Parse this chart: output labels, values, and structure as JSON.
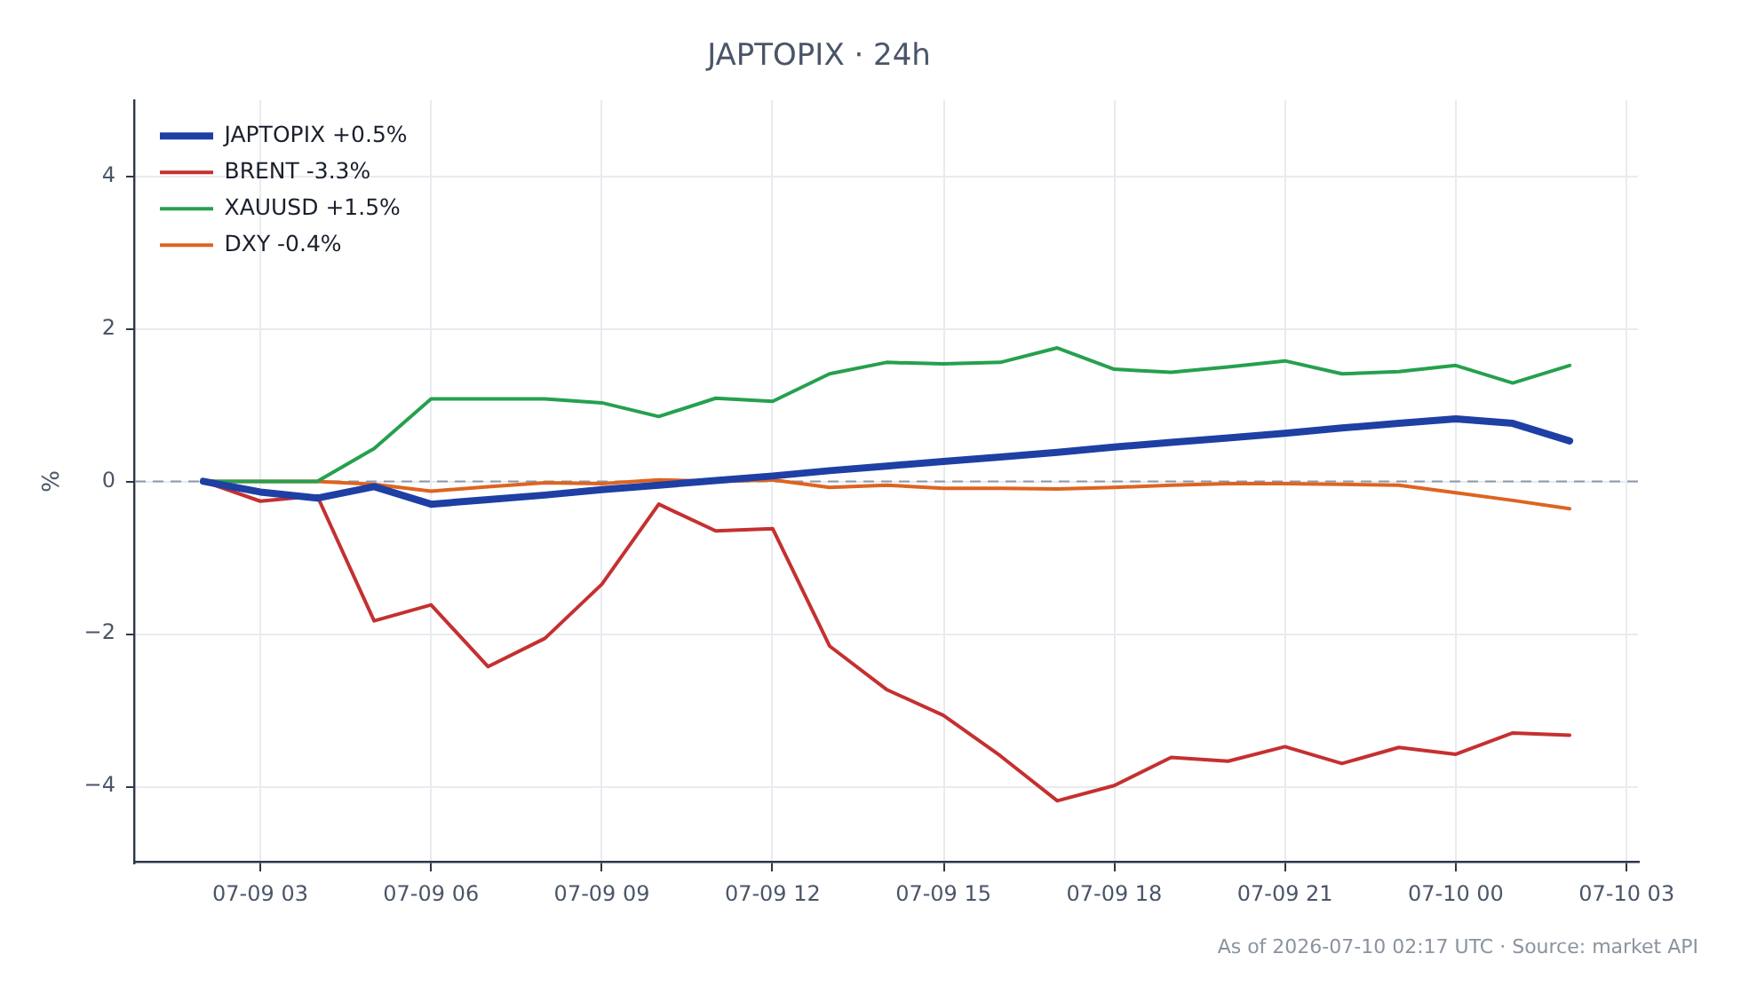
{
  "chart_data": {
    "type": "line",
    "title": "JAPTOPIX · 24h",
    "ylabel": "%",
    "annotations": [
      "As of 2026-07-10 02:17 UTC · Source: market API"
    ],
    "x": [
      "2026-07-09T02:00",
      "2026-07-09T03:00",
      "2026-07-09T04:00",
      "2026-07-09T05:00",
      "2026-07-09T06:00",
      "2026-07-09T07:00",
      "2026-07-09T08:00",
      "2026-07-09T09:00",
      "2026-07-09T10:00",
      "2026-07-09T11:00",
      "2026-07-09T12:00",
      "2026-07-09T13:00",
      "2026-07-09T14:00",
      "2026-07-09T15:00",
      "2026-07-09T16:00",
      "2026-07-09T17:00",
      "2026-07-09T18:00",
      "2026-07-09T19:00",
      "2026-07-09T20:00",
      "2026-07-09T21:00",
      "2026-07-09T22:00",
      "2026-07-09T23:00",
      "2026-07-10T00:00",
      "2026-07-10T01:00",
      "2026-07-10T02:00"
    ],
    "series": [
      {
        "name": "JAPTOPIX +0.5%",
        "color": "#1e3fa3",
        "values": [
          0,
          -0.14,
          -0.22,
          -0.07,
          -0.3,
          -0.24,
          -0.18,
          -0.11,
          -0.05,
          0.01,
          0.07,
          0.14,
          0.2,
          0.26,
          0.32,
          0.38,
          0.45,
          0.51,
          0.57,
          0.63,
          0.7,
          0.76,
          0.82,
          0.76,
          0.53
        ]
      },
      {
        "name": "BRENT -3.3%",
        "color": "#c53030",
        "values": [
          0,
          -0.26,
          -0.19,
          -1.83,
          -1.62,
          -2.43,
          -2.06,
          -1.35,
          -0.3,
          -0.65,
          -0.62,
          -2.16,
          -2.73,
          -3.07,
          -3.6,
          -4.19,
          -3.99,
          -3.62,
          -3.67,
          -3.48,
          -3.7,
          -3.49,
          -3.58,
          -3.3,
          -3.33
        ]
      },
      {
        "name": "XAUUSD +1.5%",
        "color": "#26a04e",
        "values": [
          0,
          0,
          0,
          0.43,
          1.08,
          1.08,
          1.08,
          1.03,
          0.85,
          1.09,
          1.05,
          1.41,
          1.56,
          1.54,
          1.56,
          1.75,
          1.47,
          1.43,
          1.5,
          1.58,
          1.41,
          1.44,
          1.52,
          1.29,
          1.52
        ]
      },
      {
        "name": "DXY -0.4%",
        "color": "#dd6420",
        "values": [
          0,
          0,
          0,
          -0.04,
          -0.13,
          -0.07,
          -0.02,
          -0.03,
          0.02,
          0,
          0.02,
          -0.08,
          -0.05,
          -0.09,
          -0.09,
          -0.1,
          -0.08,
          -0.05,
          -0.03,
          -0.03,
          -0.04,
          -0.05,
          -0.15,
          -0.25,
          -0.36
        ]
      }
    ],
    "xlim": [
      "2026-07-09T00:48",
      "2026-07-10T03:12"
    ],
    "xticks": [
      {
        "value": "2026-07-09T03:00",
        "label": "07-09 03"
      },
      {
        "value": "2026-07-09T06:00",
        "label": "07-09 06"
      },
      {
        "value": "2026-07-09T09:00",
        "label": "07-09 09"
      },
      {
        "value": "2026-07-09T12:00",
        "label": "07-09 12"
      },
      {
        "value": "2026-07-09T15:00",
        "label": "07-09 15"
      },
      {
        "value": "2026-07-09T18:00",
        "label": "07-09 18"
      },
      {
        "value": "2026-07-09T21:00",
        "label": "07-09 21"
      },
      {
        "value": "2026-07-10T00:00",
        "label": "07-10 00"
      },
      {
        "value": "2026-07-10T03:00",
        "label": "07-10 03"
      }
    ],
    "ylim": [
      -5,
      5
    ],
    "yticks": [
      {
        "value": -4,
        "label": "−4"
      },
      {
        "value": -2,
        "label": "−2"
      },
      0,
      2,
      4
    ],
    "ref_lines": [
      {
        "axis": "y",
        "value": 0,
        "color": "#8a98aa",
        "line_style": "dashed"
      }
    ],
    "grid": true,
    "legend": "top left"
  }
}
